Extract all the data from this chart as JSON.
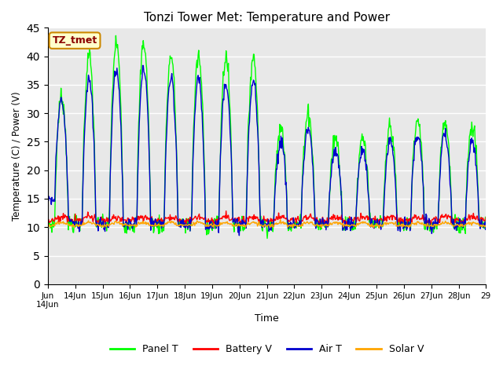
{
  "title": "Tonzi Tower Met: Temperature and Power",
  "xlabel": "Time",
  "ylabel": "Temperature (C) / Power (V)",
  "annotation": "TZ_tmet",
  "ylim": [
    0,
    45
  ],
  "yticks": [
    0,
    5,
    10,
    15,
    20,
    25,
    30,
    35,
    40,
    45
  ],
  "colors": {
    "panel_t": "#00FF00",
    "battery_v": "#FF0000",
    "air_t": "#0000CD",
    "solar_v": "#FFA500",
    "background": "#E8E8E8",
    "annotation_bg": "#FFFFCC",
    "annotation_text": "#8B0000",
    "annotation_border": "#CC8800"
  },
  "legend_labels": [
    "Panel T",
    "Battery V",
    "Air T",
    "Solar V"
  ],
  "figsize": [
    6.4,
    4.8
  ],
  "dpi": 100
}
